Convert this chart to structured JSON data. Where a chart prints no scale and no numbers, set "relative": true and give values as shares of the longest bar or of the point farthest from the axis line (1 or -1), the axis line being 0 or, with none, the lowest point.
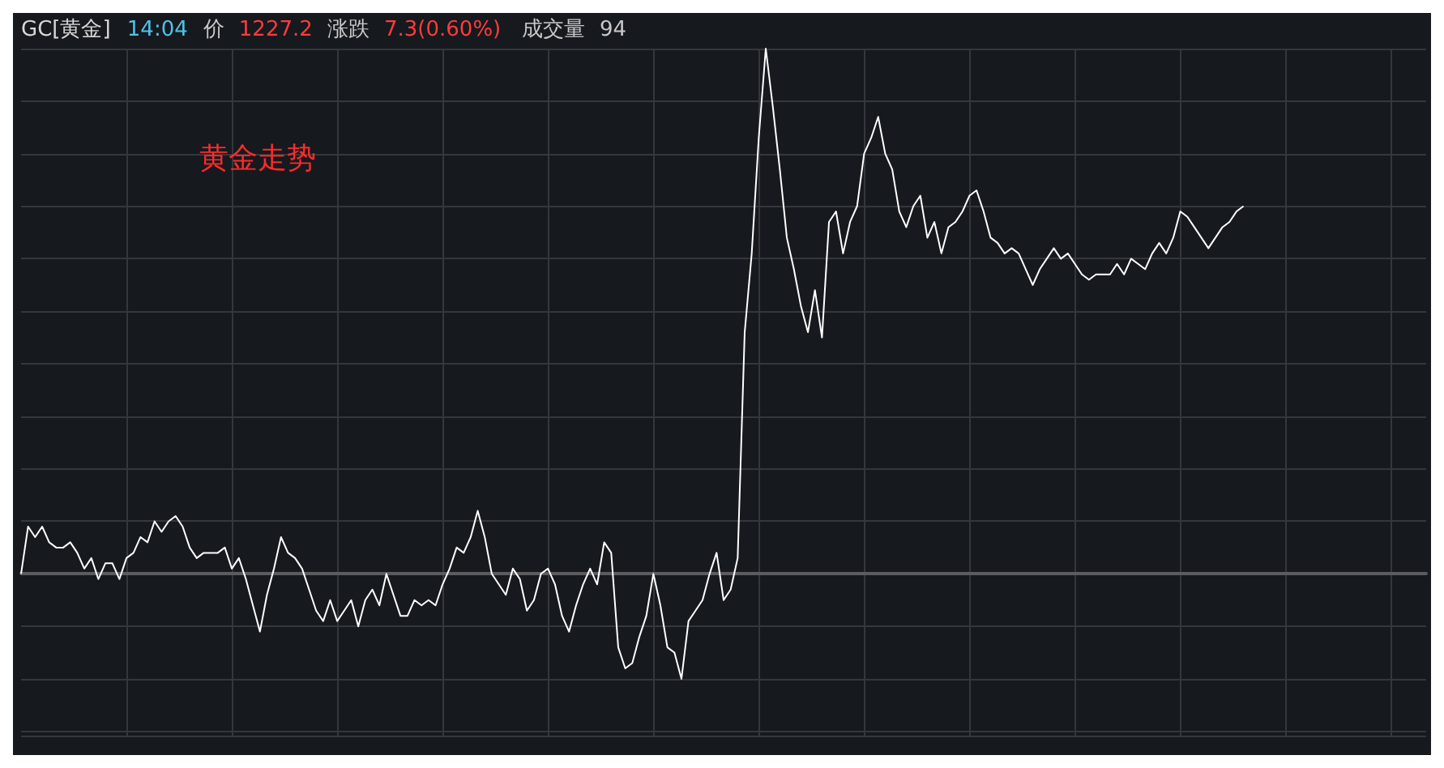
{
  "chart_data": {
    "type": "line",
    "relative": true,
    "title": "GC[黄金]",
    "subtitle": "黄金走势",
    "annotations": [
      "14:04",
      "价",
      "1227.2",
      "涨跌",
      "7.3(0.60%)",
      "成交量",
      "94"
    ],
    "grid": true,
    "marker": "none",
    "line_style": "solid",
    "categories": [
      null,
      null,
      null,
      null,
      null,
      null,
      null,
      null,
      null,
      null,
      null,
      null,
      null,
      null,
      null,
      null,
      null,
      null,
      null,
      null,
      null,
      null,
      null,
      null,
      null,
      null,
      null,
      null,
      null,
      null,
      null,
      null,
      null,
      null,
      null,
      null,
      null,
      null,
      null,
      null,
      null,
      null,
      null,
      null,
      null,
      null,
      null,
      null,
      null,
      null,
      null,
      null,
      null,
      null,
      null,
      null,
      null,
      null,
      null,
      null,
      null,
      null,
      null,
      null,
      null,
      null,
      null,
      null,
      null,
      null,
      null,
      null,
      null,
      null,
      null,
      null,
      null,
      null,
      null,
      null,
      null,
      null,
      null,
      null,
      null,
      null,
      null,
      null,
      null,
      null,
      null,
      null,
      null,
      null,
      null,
      null,
      null,
      null,
      null,
      null,
      null,
      null,
      null,
      null,
      null,
      null,
      null,
      null,
      null,
      null,
      null,
      null,
      null,
      null,
      null,
      null,
      null,
      null,
      null,
      null,
      null,
      null,
      null,
      null,
      null,
      null,
      null,
      null,
      null,
      null,
      null,
      null,
      null,
      null,
      null,
      null,
      null,
      null,
      null,
      null,
      null,
      null,
      null,
      null,
      null,
      null,
      null,
      null,
      null,
      null,
      null,
      null,
      null,
      null,
      null,
      null,
      null,
      null,
      null,
      null,
      null,
      null,
      null,
      null,
      null,
      null,
      null,
      null,
      null,
      null,
      null,
      null,
      null,
      null,
      null,
      null,
      null,
      null,
      null,
      null,
      null,
      null,
      null,
      null,
      null,
      null,
      null,
      null,
      null,
      null,
      null,
      null,
      null,
      null,
      null,
      null,
      null,
      null,
      null,
      null,
      null
    ],
    "series": [
      {
        "color": "#ffffff",
        "values": [
          0,
          0.09,
          0.07,
          0.09,
          0.06,
          0.05,
          0.05,
          0.06,
          0.04,
          0.01,
          0.03,
          -0.01,
          0.02,
          0.02,
          -0.01,
          0.03,
          0.04,
          0.07,
          0.06,
          0.1,
          0.08,
          0.1,
          0.11,
          0.09,
          0.05,
          0.03,
          0.04,
          0.04,
          0.04,
          0.05,
          0.01,
          0.03,
          -0.01,
          -0.06,
          -0.11,
          -0.04,
          0.01,
          0.07,
          0.04,
          0.03,
          0.01,
          -0.03,
          -0.07,
          -0.09,
          -0.05,
          -0.09,
          -0.07,
          -0.05,
          -0.1,
          -0.05,
          -0.03,
          -0.06,
          0.0,
          -0.04,
          -0.08,
          -0.08,
          -0.05,
          -0.06,
          -0.05,
          -0.06,
          -0.02,
          0.01,
          0.05,
          0.04,
          0.07,
          0.12,
          0.07,
          0.0,
          -0.02,
          -0.04,
          0.01,
          -0.01,
          -0.07,
          -0.05,
          0.0,
          0.01,
          -0.02,
          -0.08,
          -0.11,
          -0.06,
          -0.02,
          0.01,
          -0.02,
          0.06,
          0.04,
          -0.14,
          -0.18,
          -0.17,
          -0.12,
          -0.08,
          0.0,
          -0.06,
          -0.14,
          -0.15,
          -0.2,
          -0.09,
          -0.07,
          -0.05,
          0.0,
          0.04,
          -0.05,
          -0.03,
          0.03,
          0.46,
          0.61,
          0.83,
          1,
          0.89,
          0.77,
          0.64,
          0.58,
          0.51,
          0.46,
          0.54,
          0.45,
          0.67,
          0.69,
          0.61,
          0.67,
          0.7,
          0.8,
          0.83,
          0.87,
          0.8,
          0.77,
          0.69,
          0.66,
          0.7,
          0.72,
          0.64,
          0.67,
          0.61,
          0.66,
          0.67,
          0.69,
          0.72,
          0.73,
          0.69,
          0.64,
          0.63,
          0.61,
          0.62,
          0.61,
          0.58,
          0.55,
          0.58,
          0.6,
          0.62,
          0.6,
          0.61,
          0.59,
          0.57,
          0.56,
          0.57,
          0.57,
          0.57,
          0.59,
          0.57,
          0.6,
          0.59,
          0.58,
          0.61,
          0.63,
          0.61,
          0.64,
          0.69,
          0.68,
          0.66,
          0.64,
          0.62,
          0.64,
          0.66,
          0.67,
          0.69,
          0.7,
          null,
          null,
          null,
          null,
          null,
          null,
          null,
          null,
          null,
          null,
          null,
          null,
          null,
          null,
          null,
          null,
          null,
          null,
          null,
          null,
          null,
          null,
          null,
          null,
          null,
          null
        ]
      }
    ]
  }
}
